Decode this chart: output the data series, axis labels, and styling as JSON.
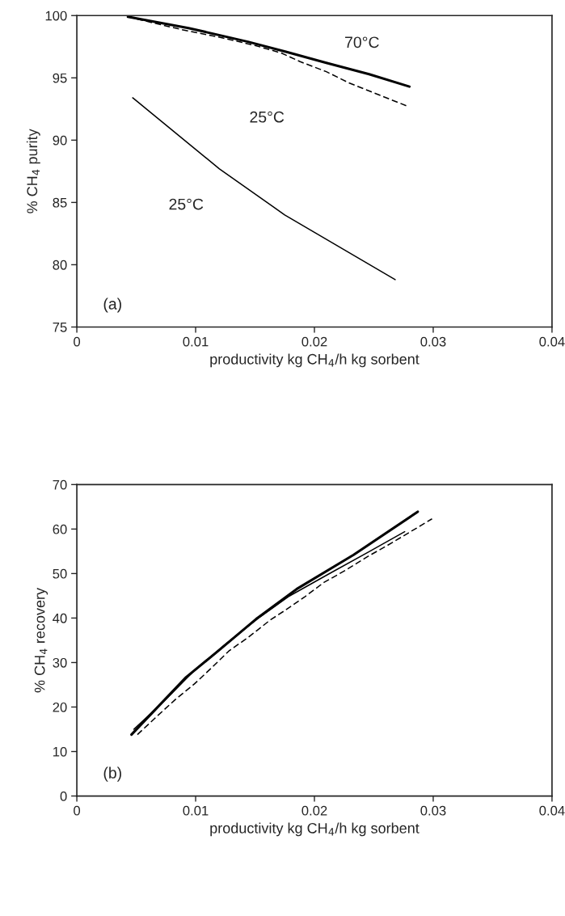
{
  "chart_data": [
    {
      "type": "line",
      "xlabel": "productivity kg CH$_{4}$/h kg sorbent",
      "ylabel": "% CH$_{4}$ purity",
      "xlim": [
        0,
        0.04
      ],
      "xticks": [
        0,
        0.01,
        0.02,
        0.03,
        0.04
      ],
      "ylim": [
        75,
        100
      ],
      "yticks": [
        75,
        80,
        85,
        90,
        95,
        100
      ],
      "grid": false,
      "legend": false,
      "series": [
        {
          "color": "#000000",
          "line_style": "solid",
          "x": [
            0.0043,
            0.0094,
            0.0144,
            0.0176,
            0.021,
            0.0246,
            0.028
          ],
          "values": [
            99.9,
            99.0,
            97.9,
            97.1,
            96.2,
            95.3,
            94.3
          ]
        },
        {
          "color": "#000000",
          "line_style": "dashed",
          "x": [
            0.0043,
            0.0087,
            0.0123,
            0.015,
            0.0172,
            0.0188,
            0.021,
            0.0229,
            0.025,
            0.0279
          ],
          "values": [
            99.9,
            98.9,
            98.2,
            97.6,
            97.0,
            96.3,
            95.5,
            94.6,
            93.8,
            92.7
          ]
        },
        {
          "color": "#000000",
          "line_style": "solid",
          "x": [
            0.0047,
            0.012,
            0.0175,
            0.0268
          ],
          "values": [
            93.4,
            87.7,
            84.0,
            78.8
          ]
        }
      ],
      "annotations": [
        "70°C",
        "25°C",
        "25°C",
        "(a)"
      ]
    },
    {
      "type": "line",
      "xlabel": "productivity kg CH$_{4}$/h kg sorbent",
      "ylabel": "% CH$_{4}$ recovery",
      "xlim": [
        0,
        0.04
      ],
      "xticks": [
        0,
        0.01,
        0.02,
        0.03,
        0.04
      ],
      "ylim": [
        0,
        70
      ],
      "yticks": [
        0,
        10,
        20,
        30,
        40,
        50,
        60,
        70
      ],
      "grid": false,
      "legend": false,
      "series": [
        {
          "color": "#000000",
          "line_style": "solid",
          "x": [
            0.0046,
            0.0092,
            0.0119,
            0.0151,
            0.0185,
            0.0233,
            0.0287
          ],
          "values": [
            13.8,
            26.7,
            32.6,
            39.8,
            46.5,
            54.2,
            63.9
          ]
        },
        {
          "color": "#000000",
          "line_style": "dashed",
          "x": [
            0.0051,
            0.0067,
            0.0083,
            0.0099,
            0.0113,
            0.0128,
            0.0144,
            0.0163,
            0.0174,
            0.0192,
            0.0208,
            0.0226,
            0.0244,
            0.026,
            0.0279,
            0.0299
          ],
          "values": [
            13.8,
            17.8,
            21.7,
            25.2,
            28.7,
            32.6,
            35.6,
            39.6,
            41.5,
            44.8,
            48.0,
            50.7,
            53.7,
            56.1,
            59.1,
            62.3
          ]
        },
        {
          "color": "#000000",
          "line_style": "solid",
          "x": [
            0.0048,
            0.0071,
            0.0097,
            0.0124,
            0.0153,
            0.0178,
            0.0212,
            0.0246,
            0.0276
          ],
          "values": [
            15.0,
            20.7,
            27.7,
            33.9,
            40.0,
            44.8,
            49.9,
            54.9,
            59.4
          ]
        }
      ],
      "annotations": [
        "(b)"
      ]
    }
  ]
}
